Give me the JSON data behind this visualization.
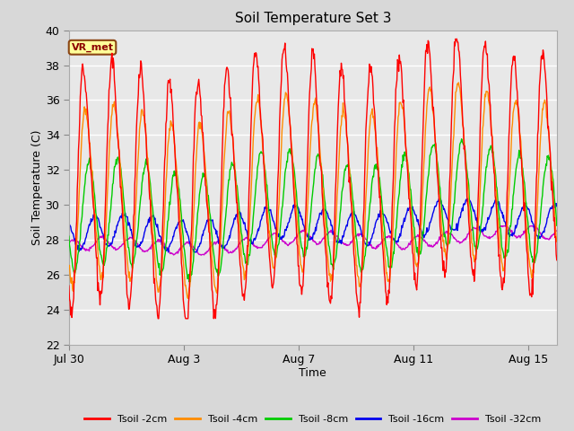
{
  "title": "Soil Temperature Set 3",
  "xlabel": "Time",
  "ylabel": "Soil Temperature (C)",
  "ylim": [
    22,
    40
  ],
  "yticks": [
    22,
    24,
    26,
    28,
    30,
    32,
    34,
    36,
    38,
    40
  ],
  "n_days": 17,
  "colors": {
    "Tsoil -2cm": "#FF0000",
    "Tsoil -4cm": "#FF8C00",
    "Tsoil -8cm": "#00CC00",
    "Tsoil -16cm": "#0000EE",
    "Tsoil -32cm": "#CC00CC"
  },
  "background_color": "#D8D8D8",
  "axes_facecolor": "#E8E8E8",
  "grid_color": "#FFFFFF",
  "annotation_text": "VR_met",
  "annotation_bg": "#FFFF99",
  "annotation_border": "#8B4513",
  "tick_positions": [
    0,
    4,
    8,
    12,
    16
  ],
  "tick_labels": [
    "Jul 30",
    "Aug 3",
    "Aug 7",
    "Aug 11",
    "Aug 15"
  ],
  "legend_labels": [
    "Tsoil -2cm",
    "Tsoil -4cm",
    "Tsoil -8cm",
    "Tsoil -16cm",
    "Tsoil -32cm"
  ]
}
